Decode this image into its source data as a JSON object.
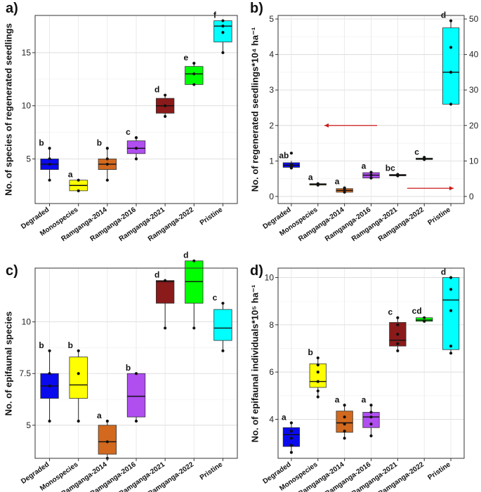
{
  "chart_data": [
    {
      "type": "box",
      "panel": "a)",
      "ylabel": "No. of species of regenerated seedlings",
      "ylim": [
        0.8,
        18.5
      ],
      "yticks": [
        5,
        10,
        15
      ],
      "categories": [
        "Degraded",
        "Monospecies",
        "Ramganga-2014",
        "Ramganga-2016",
        "Ramganga-2021",
        "Ramganga-2022",
        "Pristine"
      ],
      "letters": [
        "b",
        "a",
        "b",
        "c",
        "d",
        "e",
        "f"
      ],
      "colors": [
        "#0a0aee",
        "#ffff00",
        "#d2691e",
        "#b04ef0",
        "#8b1a1a",
        "#00ff00",
        "#00ffff"
      ],
      "boxes": [
        {
          "q1": 4.0,
          "median": 4.5,
          "q3": 5.0,
          "whisker_low": 3.0,
          "whisker_high": 6.0,
          "points": [
            3.0,
            4.5,
            5.0,
            6.0
          ]
        },
        {
          "q1": 2.0,
          "median": 2.5,
          "q3": 3.0,
          "whisker_low": 2.0,
          "whisker_high": 3.0,
          "points": [
            2.0,
            3.0
          ]
        },
        {
          "q1": 4.0,
          "median": 4.5,
          "q3": 5.0,
          "whisker_low": 3.0,
          "whisker_high": 6.0,
          "points": [
            3.0,
            4.5,
            5.0,
            6.0
          ]
        },
        {
          "q1": 5.5,
          "median": 6.0,
          "q3": 6.7,
          "whisker_low": 5.0,
          "whisker_high": 7.0,
          "points": [
            5.0,
            6.0,
            7.0
          ]
        },
        {
          "q1": 9.3,
          "median": 10.0,
          "q3": 10.7,
          "whisker_low": 9.0,
          "whisker_high": 11.0,
          "points": [
            9.0,
            10.0,
            11.0
          ]
        },
        {
          "q1": 12.0,
          "median": 13.0,
          "q3": 13.7,
          "whisker_low": 12.0,
          "whisker_high": 14.0,
          "points": [
            12.0,
            13.0,
            14.0
          ]
        },
        {
          "q1": 16.0,
          "median": 17.5,
          "q3": 18.0,
          "whisker_low": 15.0,
          "whisker_high": 18.0,
          "points": [
            15.0,
            16.9,
            17.5,
            18.0
          ]
        }
      ]
    },
    {
      "type": "box",
      "panel": "b)",
      "ylabel": "No. of regenerated seedlings*10⁴ ha⁻¹",
      "ylim": [
        -0.2,
        5.1
      ],
      "yticks": [
        0,
        1,
        2,
        3,
        4,
        5
      ],
      "y2label": "",
      "y2lim": [
        -2.0,
        51.0
      ],
      "y2ticks": [
        0,
        10,
        20,
        30,
        40,
        50
      ],
      "arrow_left_label": "",
      "arrow_right_label": "",
      "categories": [
        "Degraded",
        "Monospecies",
        "Ramganga-2014",
        "Ramganga-2016",
        "Ramganga-2021",
        "Ramganga-2022",
        "Pristine"
      ],
      "letters": [
        "ab",
        "a",
        "a",
        "a",
        "bc",
        "c",
        "d"
      ],
      "colors": [
        "#0a0aee",
        "#ffff00",
        "#d2691e",
        "#b04ef0",
        "#8b1a1a",
        "#00ff00",
        "#00ffff"
      ],
      "boxes": [
        {
          "q1": 0.82,
          "median": 0.88,
          "q3": 0.95,
          "whisker_low": 0.8,
          "whisker_high": 1.0,
          "points": [
            0.8,
            0.85,
            0.9,
            1.22
          ]
        },
        {
          "q1": 0.32,
          "median": 0.34,
          "q3": 0.36,
          "whisker_low": 0.3,
          "whisker_high": 0.38,
          "points": [
            0.32,
            0.36
          ]
        },
        {
          "q1": 0.12,
          "median": 0.17,
          "q3": 0.22,
          "whisker_low": 0.1,
          "whisker_high": 0.26,
          "points": [
            0.12,
            0.18,
            0.24
          ]
        },
        {
          "q1": 0.52,
          "median": 0.6,
          "q3": 0.67,
          "whisker_low": 0.5,
          "whisker_high": 0.7,
          "points": [
            0.52,
            0.6,
            0.68
          ]
        },
        {
          "q1": 0.58,
          "median": 0.6,
          "q3": 0.62,
          "whisker_low": 0.56,
          "whisker_high": 0.64,
          "points": [
            0.58,
            0.62
          ]
        },
        {
          "q1": 1.04,
          "median": 1.06,
          "q3": 1.08,
          "whisker_low": 1.02,
          "whisker_high": 1.1,
          "points": [
            1.04,
            1.1
          ]
        },
        {
          "q1": 2.6,
          "median": 3.5,
          "q3": 4.75,
          "whisker_low": 2.6,
          "whisker_high": 4.95,
          "points": [
            2.6,
            3.5,
            4.2,
            4.95
          ]
        }
      ]
    },
    {
      "type": "box",
      "panel": "c)",
      "ylabel": "No. of epifaunal species",
      "ylim": [
        3.4,
        12.6
      ],
      "yticks": [
        5,
        7.5,
        10
      ],
      "categories": [
        "Degraded",
        "Monospecies",
        "Ramganga-2014",
        "Ramganga-2016",
        "Ramganga-2021",
        "Ramganga-2022",
        "Pristine"
      ],
      "letters": [
        "b",
        "b",
        "a",
        "b",
        "d",
        "d",
        "c"
      ],
      "colors": [
        "#0a0aee",
        "#ffff00",
        "#d2691e",
        "#b04ef0",
        "#8b1a1a",
        "#00ff00",
        "#00ffff"
      ],
      "boxes": [
        {
          "q1": 6.3,
          "median": 6.9,
          "q3": 7.5,
          "whisker_low": 5.2,
          "whisker_high": 8.6,
          "points": [
            5.2,
            6.9,
            7.5,
            8.6
          ]
        },
        {
          "q1": 6.3,
          "median": 6.95,
          "q3": 8.3,
          "whisker_low": 5.2,
          "whisker_high": 8.6,
          "points": [
            5.2,
            7.5,
            8.6
          ]
        },
        {
          "q1": 3.6,
          "median": 4.2,
          "q3": 5.0,
          "whisker_low": 3.4,
          "whisker_high": 5.2,
          "points": [
            3.4,
            4.2,
            5.2
          ]
        },
        {
          "q1": 5.4,
          "median": 6.4,
          "q3": 7.5,
          "whisker_low": 5.2,
          "whisker_high": 7.5,
          "points": [
            5.2,
            7.5
          ]
        },
        {
          "q1": 10.9,
          "median": 11.95,
          "q3": 12.0,
          "whisker_low": 9.7,
          "whisker_high": 12.0,
          "points": [
            9.7,
            12.0
          ]
        },
        {
          "q1": 10.9,
          "median": 11.95,
          "q3": 12.95,
          "whisker_low": 9.7,
          "whisker_high": 12.95,
          "points": [
            9.7,
            12.95
          ]
        },
        {
          "q1": 9.1,
          "median": 9.7,
          "q3": 10.6,
          "whisker_low": 8.6,
          "whisker_high": 10.9,
          "points": [
            8.6,
            10.9
          ]
        }
      ]
    },
    {
      "type": "box",
      "panel": "d)",
      "ylabel": "No. of epifaunal individuals*10⁵ ha⁻¹",
      "ylim": [
        2.35,
        10.4
      ],
      "yticks": [
        4,
        6,
        8,
        10
      ],
      "categories": [
        "Degraded",
        "Monospecies",
        "Ramganga-2014",
        "Ramganga-2016",
        "Ramganga-2021",
        "Ramganga-2022",
        "Pristine"
      ],
      "letters": [
        "a",
        "b",
        "a",
        "a",
        "c",
        "cd",
        "d"
      ],
      "colors": [
        "#0a0aee",
        "#ffff00",
        "#d2691e",
        "#b04ef0",
        "#8b1a1a",
        "#00ff00",
        "#00ffff"
      ],
      "boxes": [
        {
          "q1": 2.85,
          "median": 3.35,
          "q3": 3.65,
          "whisker_low": 2.6,
          "whisker_high": 3.85,
          "points": [
            2.6,
            2.9,
            3.2,
            3.5,
            3.85
          ]
        },
        {
          "q1": 5.35,
          "median": 5.6,
          "q3": 6.35,
          "whisker_low": 4.95,
          "whisker_high": 6.6,
          "points": [
            4.95,
            5.2,
            5.6,
            6.0,
            6.3,
            6.6
          ]
        },
        {
          "q1": 3.45,
          "median": 3.85,
          "q3": 4.35,
          "whisker_low": 3.2,
          "whisker_high": 4.6,
          "points": [
            3.2,
            3.5,
            3.8,
            4.1,
            4.6
          ]
        },
        {
          "q1": 3.65,
          "median": 4.1,
          "q3": 4.3,
          "whisker_low": 3.3,
          "whisker_high": 4.6,
          "points": [
            3.3,
            3.8,
            4.1,
            4.3,
            4.6
          ]
        },
        {
          "q1": 7.1,
          "median": 7.35,
          "q3": 8.1,
          "whisker_low": 6.9,
          "whisker_high": 8.3,
          "points": [
            6.9,
            7.2,
            7.6,
            8.0,
            8.3
          ]
        },
        {
          "q1": 8.15,
          "median": 8.2,
          "q3": 8.3,
          "whisker_low": 8.1,
          "whisker_high": 8.35,
          "points": [
            8.15,
            8.3
          ]
        },
        {
          "q1": 6.95,
          "median": 9.05,
          "q3": 10.0,
          "whisker_low": 6.8,
          "whisker_high": 10.0,
          "points": [
            6.8,
            7.1,
            8.6,
            9.5,
            10.0
          ]
        }
      ]
    }
  ]
}
